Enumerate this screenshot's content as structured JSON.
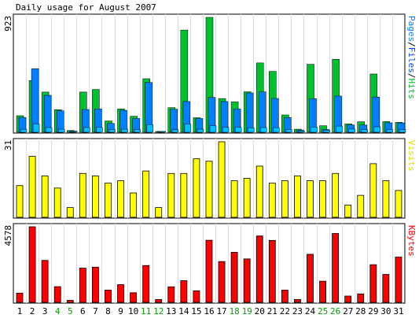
{
  "chart_data": [
    {
      "type": "bar",
      "title": "Daily usage for August 2007",
      "ymax_label": "923",
      "legend": [
        {
          "text": "Pages",
          "color": "#0080ff"
        },
        {
          "text": "/",
          "color": "#000000"
        },
        {
          "text": "Files",
          "color": "#0040ff"
        },
        {
          "text": "/",
          "color": "#000000"
        },
        {
          "text": "Hits",
          "color": "#00c030"
        }
      ],
      "categories": [
        "1",
        "2",
        "3",
        "4",
        "5",
        "6",
        "7",
        "8",
        "9",
        "10",
        "11",
        "12",
        "13",
        "14",
        "15",
        "16",
        "17",
        "18",
        "19",
        "20",
        "21",
        "22",
        "23",
        "24",
        "25",
        "26",
        "27",
        "28",
        "29",
        "30",
        "31"
      ],
      "weekend_days": [
        "4",
        "5",
        "11",
        "12",
        "18",
        "19",
        "25",
        "26"
      ],
      "ylim": [
        0,
        923
      ],
      "series": [
        {
          "name": "Hits",
          "color": "#00c030",
          "values": [
            133,
            415,
            323,
            182,
            15,
            323,
            344,
            91,
            187,
            129,
            430,
            5,
            198,
            821,
            117,
            923,
            271,
            244,
            325,
            557,
            489,
            139,
            25,
            546,
            53,
            586,
            67,
            85,
            468,
            86,
            80
          ]
        },
        {
          "name": "Files",
          "color": "#0080ff",
          "values": [
            119,
            511,
            297,
            173,
            9,
            183,
            187,
            71,
            177,
            111,
            400,
            5,
            186,
            247,
            111,
            280,
            247,
            187,
            316,
            325,
            272,
            118,
            18,
            270,
            23,
            291,
            59,
            58,
            283,
            76,
            75
          ]
        },
        {
          "name": "Pages",
          "color": "#00c0ff",
          "values": [
            24,
            66,
            38,
            25,
            5,
            38,
            39,
            22,
            25,
            21,
            62,
            2,
            20,
            66,
            25,
            53,
            40,
            41,
            36,
            38,
            37,
            22,
            10,
            42,
            16,
            50,
            26,
            21,
            44,
            21,
            21
          ]
        }
      ]
    },
    {
      "type": "bar",
      "ymax_label": "31",
      "legend": [
        {
          "text": "Visits",
          "color": "#e0e000"
        }
      ],
      "color": "#ffff00",
      "categories": [
        "1",
        "2",
        "3",
        "4",
        "5",
        "6",
        "7",
        "8",
        "9",
        "10",
        "11",
        "12",
        "13",
        "14",
        "15",
        "16",
        "17",
        "18",
        "19",
        "20",
        "21",
        "22",
        "23",
        "24",
        "25",
        "26",
        "27",
        "28",
        "29",
        "30",
        "31"
      ],
      "ylim": [
        0,
        31
      ],
      "values": [
        13,
        25,
        17,
        12,
        4,
        18,
        17,
        14,
        15,
        10,
        19,
        4,
        18,
        18,
        24,
        23,
        31,
        15,
        16,
        21,
        14,
        15,
        17,
        15,
        15,
        18,
        5,
        9,
        22,
        15,
        11
      ]
    },
    {
      "type": "bar",
      "ymax_label": "4578",
      "legend": [
        {
          "text": "KBytes",
          "color": "#ff0000"
        }
      ],
      "color": "#ff0000",
      "categories": [
        "1",
        "2",
        "3",
        "4",
        "5",
        "6",
        "7",
        "8",
        "9",
        "10",
        "11",
        "12",
        "13",
        "14",
        "15",
        "16",
        "17",
        "18",
        "19",
        "20",
        "21",
        "22",
        "23",
        "24",
        "25",
        "26",
        "27",
        "28",
        "29",
        "30",
        "31"
      ],
      "ylim": [
        0,
        4578
      ],
      "values": [
        560,
        4578,
        2540,
        950,
        120,
        2070,
        2130,
        740,
        1070,
        580,
        2230,
        170,
        940,
        1310,
        700,
        3760,
        2470,
        3030,
        2630,
        4020,
        3750,
        740,
        170,
        2910,
        1280,
        4170,
        380,
        510,
        2280,
        1690,
        2740
      ]
    }
  ]
}
